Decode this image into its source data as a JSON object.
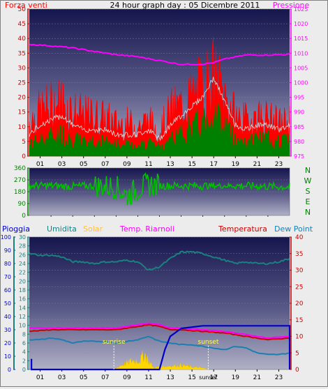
{
  "header": {
    "wind_label": "Forza venti",
    "title": "24 hour graph day : 05 Dicembre 2011",
    "pressure_label": "Pressione"
  },
  "colors": {
    "wind": "#ff0000",
    "gust": "#ff0000",
    "wind_avg": "#008000",
    "pressure": "#ff00ff",
    "direction": "#00c000",
    "rain": "#0000cc",
    "humidity": "#1a8080",
    "solar": "#ffd700",
    "indoor": "#ff00ff",
    "temperature": "#cc0000",
    "dewpoint": "#1a80b0",
    "compass": "#008000"
  },
  "chart_data": [
    {
      "type": "line",
      "title": "24 hour graph day : 05 Dicembre 2011",
      "x_ticks": [
        "01",
        "03",
        "05",
        "07",
        "09",
        "11",
        "13",
        "15",
        "17",
        "19",
        "21",
        "23"
      ],
      "xlim": [
        0,
        24
      ],
      "left_axis": {
        "label": "Forza venti",
        "ylim": [
          0,
          50
        ],
        "ticks": [
          "0",
          "5",
          "10",
          "15",
          "20",
          "25",
          "30",
          "35",
          "40",
          "45",
          "50"
        ]
      },
      "right_axis": {
        "label": "Pressione",
        "ylim": [
          975,
          1025
        ],
        "ticks": [
          "975",
          "980",
          "985",
          "990",
          "995",
          "1000",
          "1005",
          "1010",
          "1015",
          "1020",
          "1025"
        ]
      },
      "series": [
        {
          "name": "gust",
          "axis": "left",
          "x": [
            0,
            1,
            2,
            3,
            4,
            5,
            6,
            7,
            8,
            9,
            10,
            11,
            12,
            13,
            14,
            15,
            16,
            17,
            18,
            19,
            20,
            21,
            22,
            23,
            24
          ],
          "values": [
            14,
            18,
            20,
            22,
            18,
            16,
            16,
            15,
            13,
            13,
            12,
            14,
            10,
            18,
            20,
            24,
            28,
            32,
            24,
            16,
            14,
            16,
            15,
            13,
            14
          ]
        },
        {
          "name": "average",
          "axis": "left",
          "x": [
            0,
            1,
            2,
            3,
            4,
            5,
            6,
            7,
            8,
            9,
            10,
            11,
            12,
            13,
            14,
            15,
            16,
            17,
            18,
            19,
            20,
            21,
            22,
            23,
            24
          ],
          "values": [
            4,
            6,
            7,
            8,
            6,
            5,
            5,
            5,
            4,
            4,
            4,
            5,
            3,
            6,
            8,
            10,
            12,
            16,
            11,
            6,
            5,
            6,
            6,
            5,
            6
          ]
        },
        {
          "name": "Pressione",
          "axis": "right",
          "x": [
            0,
            2,
            4,
            6,
            8,
            10,
            12,
            14,
            16,
            17,
            18,
            20,
            22,
            24
          ],
          "values": [
            1013,
            1012.5,
            1011.8,
            1010.6,
            1009.5,
            1008.8,
            1007.5,
            1006.2,
            1006.3,
            1006.8,
            1008,
            1009.4,
            1009.4,
            1009.6
          ]
        }
      ]
    },
    {
      "type": "scatter",
      "xlim": [
        0,
        24
      ],
      "ylim": [
        0,
        360
      ],
      "y_ticks": [
        "0",
        "90",
        "180",
        "270",
        "360"
      ],
      "compass": [
        "N",
        "W",
        "S",
        "E",
        "N"
      ],
      "series": [
        {
          "name": "direction",
          "x": [
            0,
            2,
            4,
            6,
            8,
            9,
            10,
            11,
            12,
            14,
            16,
            18,
            20,
            22,
            24
          ],
          "values": [
            225,
            225,
            220,
            225,
            215,
            150,
            200,
            235,
            225,
            225,
            225,
            225,
            225,
            220,
            215
          ]
        }
      ]
    },
    {
      "type": "line",
      "x_ticks": [
        "01",
        "03",
        "05",
        "07",
        "09",
        "11",
        "13",
        "15",
        "17",
        "19",
        "21",
        "23"
      ],
      "xlim": [
        0,
        24
      ],
      "legend": [
        "Pioggia",
        "Umidita",
        "Solar",
        "Temp. Riarnoli",
        "Temperatura",
        "Dew Point"
      ],
      "annotations": [
        "sunrise",
        "sunset"
      ],
      "axes": {
        "pioggia": {
          "ylim": [
            0,
            100
          ],
          "ticks": [
            "0",
            "10",
            "20",
            "30",
            "40",
            "50",
            "60",
            "70",
            "80",
            "90",
            "100"
          ]
        },
        "umidita": {
          "ylim": [
            0,
            30
          ],
          "ticks": [
            "0",
            "2",
            "4",
            "6",
            "8",
            "10",
            "12",
            "14",
            "16",
            "18",
            "20",
            "22",
            "24",
            "26",
            "28",
            "30"
          ]
        },
        "temperatura": {
          "ylim": [
            0,
            40
          ],
          "ticks": [
            "0",
            "5",
            "10",
            "15",
            "20",
            "25",
            "30",
            "35",
            "40"
          ]
        }
      },
      "series": [
        {
          "name": "Umidita",
          "axis": "temperatura",
          "x": [
            0,
            1,
            2,
            3,
            4,
            5,
            6,
            7,
            8,
            9,
            10,
            11,
            12,
            13,
            14,
            15,
            16,
            17,
            18,
            19,
            20,
            21,
            22,
            23,
            24
          ],
          "values": [
            35,
            34.5,
            34.5,
            34,
            32.5,
            32.5,
            32,
            32.5,
            32.5,
            33,
            32.5,
            30,
            31,
            33.5,
            35.5,
            35.5,
            35,
            34,
            33,
            32,
            32.5,
            32,
            32,
            32.5,
            33.5
          ]
        },
        {
          "name": "Temp. Riarnoli",
          "axis": "temperatura",
          "x": [
            0,
            2,
            4,
            6,
            8,
            10,
            11,
            12,
            13,
            14,
            16,
            18,
            20,
            22,
            24
          ],
          "values": [
            12.5,
            12.5,
            12.5,
            12.5,
            12.5,
            13.5,
            14,
            13.5,
            12.5,
            12.5,
            12,
            11.5,
            10.5,
            9.5,
            10
          ]
        },
        {
          "name": "Temperatura",
          "axis": "temperatura",
          "x": [
            0,
            2,
            4,
            6,
            8,
            10,
            11,
            12,
            13,
            14,
            16,
            18,
            20,
            22,
            24
          ],
          "values": [
            11.5,
            12,
            12,
            12,
            12,
            13,
            13.5,
            13,
            12,
            12,
            11.5,
            11,
            10,
            9,
            9.5
          ]
        },
        {
          "name": "Dew Point",
          "axis": "temperatura",
          "x": [
            0,
            1,
            2,
            3,
            4,
            5,
            6,
            7,
            8,
            9,
            10,
            11,
            12,
            13,
            14,
            15,
            16,
            17,
            18,
            19,
            20,
            21,
            22,
            23,
            24
          ],
          "values": [
            9,
            9,
            9.5,
            9,
            8,
            8.5,
            8.5,
            8.5,
            8,
            8.5,
            9,
            10,
            8.5,
            8,
            7.5,
            7.5,
            7,
            6.5,
            6,
            7,
            6.5,
            5,
            4.5,
            4.5,
            5
          ]
        },
        {
          "name": "Pioggia",
          "axis": "pioggia",
          "x": [
            0.2,
            0.2,
            0.4,
            12,
            12.5,
            13,
            14,
            16,
            18,
            20,
            24,
            24
          ],
          "values": [
            8,
            0,
            0,
            0,
            15,
            25,
            31,
            33,
            33,
            33,
            33,
            0
          ]
        },
        {
          "name": "Solar",
          "axis": "temperatura",
          "x": [
            7.8,
            8.5,
            9.5,
            10.2,
            10.6,
            11,
            11.5,
            12,
            13,
            14,
            15,
            16,
            16.5
          ],
          "values": [
            0,
            1.5,
            3,
            3,
            5.5,
            3,
            0.5,
            1,
            1.2,
            1.5,
            0.8,
            0.5,
            0
          ]
        }
      ]
    }
  ]
}
